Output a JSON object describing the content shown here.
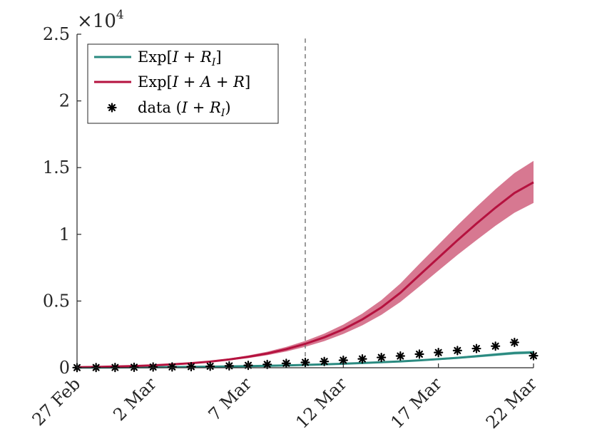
{
  "chart_data": {
    "type": "line",
    "x": [
      "27 Feb",
      "28 Feb",
      "29 Feb",
      "1 Mar",
      "2 Mar",
      "3 Mar",
      "4 Mar",
      "5 Mar",
      "6 Mar",
      "7 Mar",
      "8 Mar",
      "9 Mar",
      "10 Mar",
      "11 Mar",
      "12 Mar",
      "13 Mar",
      "14 Mar",
      "15 Mar",
      "16 Mar",
      "17 Mar",
      "18 Mar",
      "19 Mar",
      "20 Mar",
      "21 Mar",
      "22 Mar"
    ],
    "xticks": [
      "27 Feb",
      "2 Mar",
      "7 Mar",
      "12 Mar",
      "17 Mar",
      "22 Mar"
    ],
    "ylim": [
      0,
      25000
    ],
    "yticks": [
      0,
      5000,
      10000,
      15000,
      20000,
      25000
    ],
    "ytick_labels": [
      "0",
      "0.5",
      "1",
      "1.5",
      "2",
      "2.5"
    ],
    "y_exponent_label": "×10",
    "y_exponent_power": "4",
    "vline_x": "10 Mar",
    "legend_position": "top-left",
    "grid": false,
    "series": [
      {
        "name": "Exp[I + R_I]",
        "color": "#2a8a80",
        "band_color": "#7fbfb8",
        "values": [
          10,
          15,
          22,
          30,
          40,
          52,
          66,
          82,
          100,
          122,
          148,
          178,
          212,
          252,
          298,
          350,
          410,
          478,
          556,
          645,
          745,
          858,
          985,
          1100,
          1150
        ],
        "lower": [
          8,
          12,
          18,
          25,
          33,
          44,
          56,
          70,
          86,
          105,
          128,
          155,
          186,
          222,
          263,
          310,
          364,
          426,
          496,
          576,
          666,
          768,
          882,
          990,
          1040
        ],
        "upper": [
          12,
          18,
          26,
          35,
          47,
          60,
          76,
          94,
          114,
          139,
          168,
          201,
          238,
          282,
          333,
          390,
          456,
          530,
          616,
          714,
          824,
          948,
          1088,
          1210,
          1260
        ]
      },
      {
        "name": "Exp[I + A + R]",
        "color": "#b5123f",
        "band_color": "#d0607e",
        "values": [
          40,
          60,
          90,
          130,
          180,
          250,
          340,
          460,
          620,
          820,
          1070,
          1390,
          1790,
          2280,
          2880,
          3620,
          4520,
          5620,
          6940,
          8250,
          9550,
          10800,
          12000,
          13100,
          13900
        ],
        "lower": [
          35,
          52,
          78,
          114,
          158,
          220,
          300,
          404,
          544,
          720,
          940,
          1220,
          1570,
          2000,
          2530,
          3180,
          3970,
          4930,
          6090,
          7280,
          8450,
          9560,
          10640,
          11620,
          12350
        ],
        "upper": [
          45,
          68,
          102,
          146,
          202,
          280,
          380,
          516,
          696,
          920,
          1200,
          1560,
          2010,
          2560,
          3230,
          4060,
          5070,
          6310,
          7790,
          9230,
          10670,
          12050,
          13380,
          14600,
          15500
        ]
      },
      {
        "name": "data (I + R_I)",
        "color": "#000000",
        "marker": "asterisk",
        "values": [
          11,
          17,
          21,
          35,
          53,
          60,
          80,
          110,
          140,
          180,
          250,
          330,
          400,
          470,
          560,
          660,
          770,
          880,
          1020,
          1140,
          1290,
          1440,
          1620,
          1900,
          900
        ]
      }
    ]
  },
  "legend": {
    "items": [
      {
        "prefix": "Exp[",
        "expr": "I + R",
        "sub": "I",
        "suffix": "]"
      },
      {
        "prefix": "Exp[",
        "expr": "I + A + R",
        "sub": "",
        "suffix": "]"
      },
      {
        "prefix": "data (",
        "expr": "I + R",
        "sub": "I",
        "suffix": ")"
      }
    ]
  }
}
